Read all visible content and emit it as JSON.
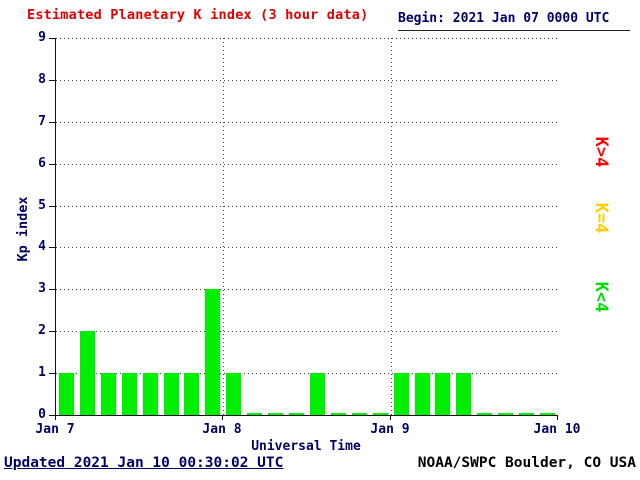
{
  "chart_data": {
    "type": "bar",
    "title": "Estimated Planetary K index (3 hour data)",
    "begin_label": "Begin:",
    "begin_value": "2021 Jan 07 0000 UTC",
    "xlabel": "Universal Time",
    "ylabel": "Kp index",
    "ylim": [
      0,
      9
    ],
    "y_ticks": [
      0,
      1,
      2,
      3,
      4,
      5,
      6,
      7,
      8,
      9
    ],
    "x_tick_labels": [
      "Jan 7",
      "Jan 8",
      "Jan 9",
      "Jan 10"
    ],
    "bar_interval_hours": 3,
    "values": [
      1,
      2,
      1,
      1,
      1,
      1,
      1,
      3,
      1,
      0,
      0,
      0,
      1,
      0,
      0,
      0,
      1,
      1,
      1,
      1,
      0,
      0,
      0,
      0
    ],
    "bar_color": "#00ee00",
    "grid": "dotted horizontal lines at each integer; dotted vertical lines at day boundaries",
    "legend_position": "right side, labels rotated 90 degrees",
    "legend": [
      {
        "label": "K>4",
        "color": "#ff0000"
      },
      {
        "label": "K=4",
        "color": "#ffcc00"
      },
      {
        "label": "K<4",
        "color": "#00dd00"
      }
    ]
  },
  "footer": {
    "updated": "Updated 2021 Jan 10 00:30:02 UTC",
    "source": "NOAA/SWPC Boulder, CO USA"
  }
}
